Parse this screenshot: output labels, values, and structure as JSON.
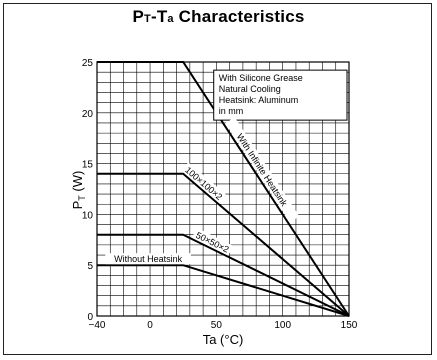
{
  "chart_data": {
    "type": "line",
    "title_main_1": "P",
    "title_sub_1": "T",
    "title_main_2": "-T",
    "title_sub_2": "a",
    "title_main_3": " Characteristics",
    "ylabel_main": "P",
    "ylabel_sub": "T",
    "ylabel_unit": "(W)",
    "xlabel": "Ta  (°C)",
    "xlim": [
      -40,
      150
    ],
    "ylim": [
      0,
      25
    ],
    "x_ticks": [
      -40,
      0,
      50,
      100,
      150
    ],
    "y_ticks": [
      0,
      5,
      10,
      15,
      20,
      25
    ],
    "grid": true,
    "annotation_box": [
      "With Silicone Grease",
      "Natural Cooling",
      "Heatsink: Aluminum",
      "in mm"
    ],
    "series": [
      {
        "name": "With Infinite Heatsink",
        "points": [
          [
            -40,
            25
          ],
          [
            25,
            25
          ],
          [
            150,
            0
          ]
        ]
      },
      {
        "name": "100×100×2",
        "points": [
          [
            -40,
            14
          ],
          [
            25,
            14
          ],
          [
            150,
            0
          ]
        ]
      },
      {
        "name": "50×50×2",
        "points": [
          [
            -40,
            8
          ],
          [
            25,
            8
          ],
          [
            150,
            0
          ]
        ]
      },
      {
        "name": "Without Heatsink",
        "points": [
          [
            -40,
            5
          ],
          [
            25,
            5
          ],
          [
            150,
            0
          ]
        ]
      }
    ]
  }
}
